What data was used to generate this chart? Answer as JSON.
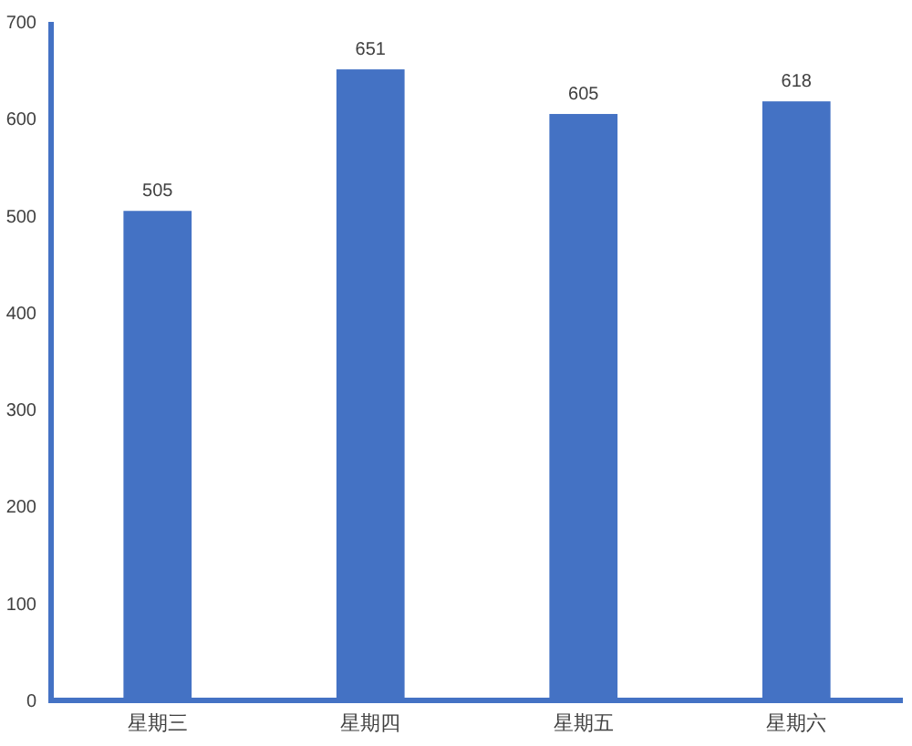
{
  "chart_data": {
    "type": "bar",
    "categories": [
      "星期三",
      "星期四",
      "星期五",
      "星期六"
    ],
    "values": [
      505,
      651,
      605,
      618
    ],
    "color": "#4472c4",
    "ylim": [
      0,
      700
    ],
    "yticks": [
      0,
      100,
      200,
      300,
      400,
      500,
      600,
      700
    ],
    "grid": false,
    "data_labels": true
  }
}
